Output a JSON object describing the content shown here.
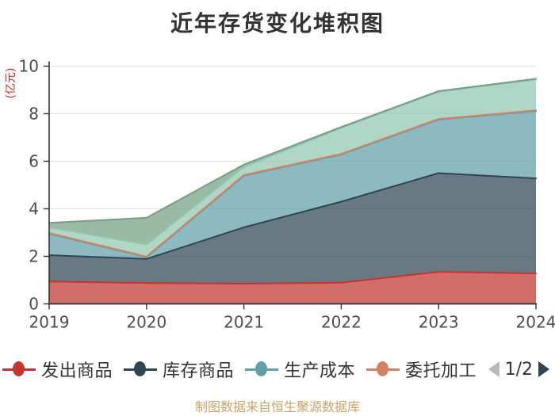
{
  "title": "近年存货变化堆积图",
  "y_axis": {
    "name": "(亿元)",
    "ticks": [
      0,
      2,
      4,
      6,
      8,
      10
    ],
    "min": 0,
    "max": 10
  },
  "x_axis": {
    "categories": [
      "2019",
      "2020",
      "2021",
      "2022",
      "2023",
      "2024"
    ]
  },
  "chart_data": {
    "type": "area",
    "stacked": true,
    "title": "近年存货变化堆积图",
    "ylabel": "(亿元)",
    "ylim": [
      0,
      10
    ],
    "grid": true,
    "legend_position": "bottom",
    "x": [
      "2019",
      "2020",
      "2021",
      "2022",
      "2023",
      "2024"
    ],
    "series": [
      {
        "name": "发出商品",
        "color": "#c23531",
        "values": [
          0.94,
          0.88,
          0.85,
          0.89,
          1.35,
          1.28
        ]
      },
      {
        "name": "库存商品",
        "color": "#2f4554",
        "values": [
          1.11,
          1.01,
          2.37,
          3.41,
          4.15,
          4.0
        ]
      },
      {
        "name": "生产成本",
        "color": "#61a0a8",
        "values": [
          0.9,
          0.07,
          2.17,
          1.98,
          2.25,
          2.83
        ]
      },
      {
        "name": "委托加工",
        "color": "#d48265",
        "values": [
          0.03,
          0.03,
          0.03,
          0.03,
          0.03,
          0.03
        ]
      },
      {
        "name": "",
        "color": "#91c7ae",
        "values": [
          0.24,
          0.51,
          0.34,
          1.09,
          1.14,
          1.3
        ]
      },
      {
        "name": "",
        "color": "#749f83",
        "values": [
          0.19,
          1.12,
          0.1,
          0.04,
          0.03,
          0.03
        ]
      }
    ]
  },
  "legend": {
    "items": [
      {
        "label": "发出商品",
        "color": "#c23531"
      },
      {
        "label": "库存商品",
        "color": "#2f4554"
      },
      {
        "label": "生产成本",
        "color": "#61a0a8"
      },
      {
        "label": "委托加工",
        "color": "#d48265"
      }
    ],
    "pager": {
      "page": "1/2",
      "prev_color": "#b9b9b9",
      "next_color": "#2f4554"
    }
  },
  "footer": {
    "credit": "制图数据来自恒生聚源数据库"
  },
  "style": {
    "axis_color": "#333333",
    "tick_label_color": "#4d4d4d",
    "grid_color": "#e2e2e2",
    "area_opacity": 0.72
  }
}
